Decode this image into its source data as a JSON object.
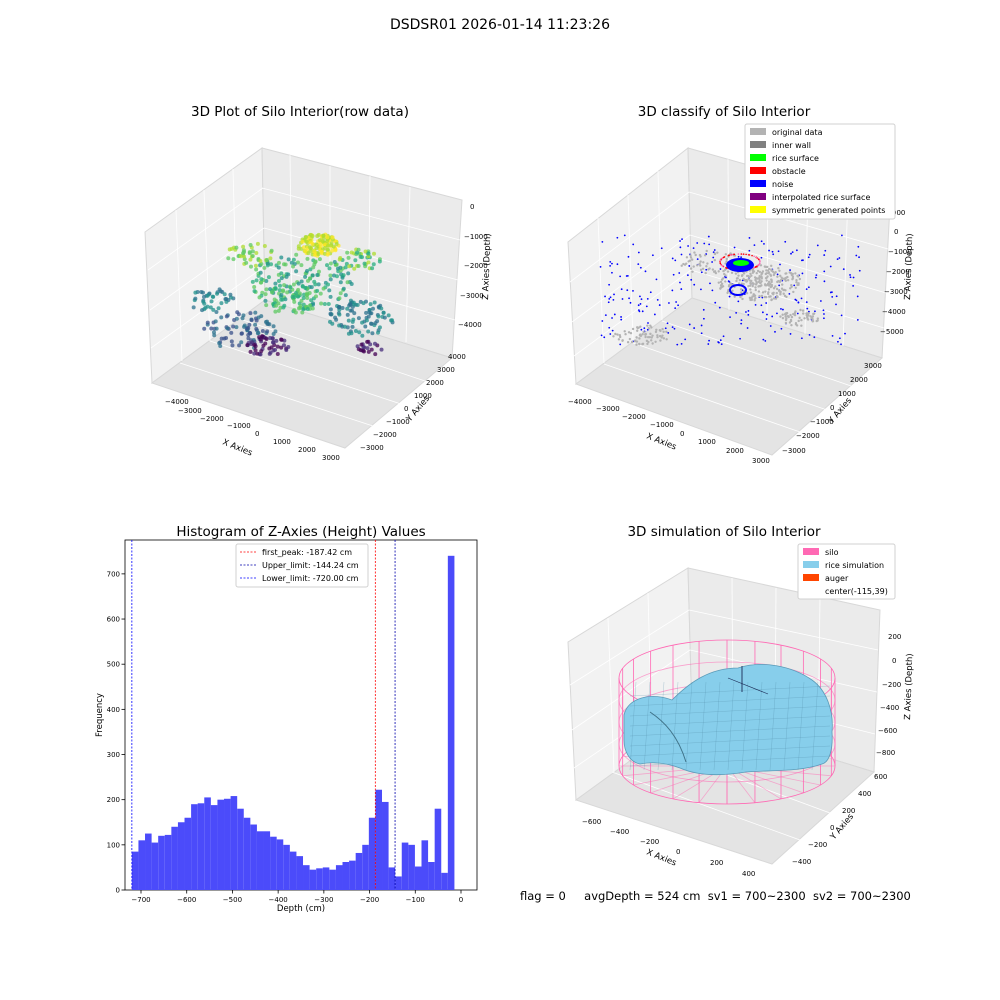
{
  "suptitle": "DSDSR01 2026-01-14 11:23:26",
  "panels": {
    "raw": {
      "title": "3D Plot of Silo Interior(row data)",
      "xlabel": "X Axies",
      "ylabel": "Y Axies",
      "zlabel": "Z Axies (Depth)",
      "xticks": [
        "−4000",
        "−3000",
        "−2000",
        "−1000",
        "0",
        "1000",
        "2000",
        "3000"
      ],
      "yticks": [
        "4000",
        "3000",
        "2000",
        "1000",
        "0",
        "−1000",
        "−2000",
        "−3000"
      ],
      "zticks": [
        "0",
        "−1000",
        "−2000",
        "−3000",
        "−4000"
      ]
    },
    "classify": {
      "title": "3D classify of Silo Interior",
      "xlabel": "X Axies",
      "ylabel": "Y Axies",
      "zlabel": "Z Axies (Depth)",
      "xticks": [
        "−4000",
        "−3000",
        "−2000",
        "−1000",
        "0",
        "1000",
        "2000",
        "3000"
      ],
      "yticks": [
        "3000",
        "2000",
        "1000",
        "0",
        "−1000",
        "−2000",
        "−3000"
      ],
      "zticks": [
        "0",
        "−1000",
        "−2000",
        "−3000",
        "−4000",
        "−5000"
      ],
      "zticks_top": "000",
      "legend": [
        {
          "label": "original data",
          "color": "#b3b3b3"
        },
        {
          "label": "inner wall",
          "color": "#808080"
        },
        {
          "label": "rice surface",
          "color": "#00ff00"
        },
        {
          "label": "obstacle",
          "color": "#ff0000"
        },
        {
          "label": "noise",
          "color": "#0000ff"
        },
        {
          "label": "interpolated rice surface",
          "color": "#800080"
        },
        {
          "label": "symmetric generated points",
          "color": "#ffff00"
        }
      ]
    },
    "simulation": {
      "title": "3D simulation of Silo Interior",
      "xlabel": "X Axies",
      "ylabel": "Y Axies",
      "zlabel": "Z Axies (Depth)",
      "xticks": [
        "−600",
        "−400",
        "−200",
        "0",
        "200",
        "400"
      ],
      "yticks": [
        "600",
        "400",
        "200",
        "0",
        "−200",
        "−400"
      ],
      "zticks": [
        "200",
        "0",
        "−200",
        "−400",
        "−600",
        "−800"
      ],
      "legend": [
        {
          "label": "silo",
          "color": "#ff69b4"
        },
        {
          "label": "rice simulation",
          "color": "#87ceeb"
        },
        {
          "label": "auger",
          "color": "#ff4500"
        },
        {
          "label": "center(-115,39)",
          "color": ""
        }
      ]
    }
  },
  "chart_data": {
    "type": "bar",
    "title": "Histogram of Z-Axies (Height) Values",
    "xlabel": "Depth (cm)",
    "ylabel": "Frequency",
    "xlim": [
      -735,
      35
    ],
    "ylim": [
      0,
      775
    ],
    "xticks": [
      -700,
      -600,
      -500,
      -400,
      -300,
      -200,
      -100,
      0
    ],
    "xtick_labels": [
      "−700",
      "−600",
      "−500",
      "−400",
      "−300",
      "−200",
      "−100",
      "0"
    ],
    "yticks": [
      0,
      100,
      200,
      300,
      400,
      500,
      600,
      700
    ],
    "bin_start": -720,
    "bin_width": 14.4,
    "values": [
      85,
      110,
      125,
      105,
      120,
      122,
      140,
      150,
      160,
      190,
      192,
      205,
      188,
      200,
      202,
      208,
      180,
      160,
      145,
      130,
      130,
      118,
      112,
      100,
      85,
      75,
      55,
      45,
      48,
      50,
      45,
      55,
      62,
      65,
      82,
      100,
      160,
      222,
      195,
      50,
      30,
      105,
      100,
      52,
      110,
      62,
      180,
      38,
      740
    ],
    "bar_color": "#4b4bfa",
    "vlines": [
      {
        "x": -187.42,
        "color": "#ff0000",
        "label": "first_peak: -187.42 cm"
      },
      {
        "x": -144.24,
        "color": "#0000aa",
        "label": "Upper_limit: -144.24 cm"
      },
      {
        "x": -720.0,
        "color": "#0000ff",
        "label": "Lower_limit: -720.00 cm"
      }
    ],
    "legend_position": "top-right",
    "grid": false
  },
  "status": {
    "flag": "flag = 0",
    "avg": "avgDepth = 524 cm",
    "sv1": "sv1 = 700~2300",
    "sv2": "sv2 = 700~2300"
  }
}
